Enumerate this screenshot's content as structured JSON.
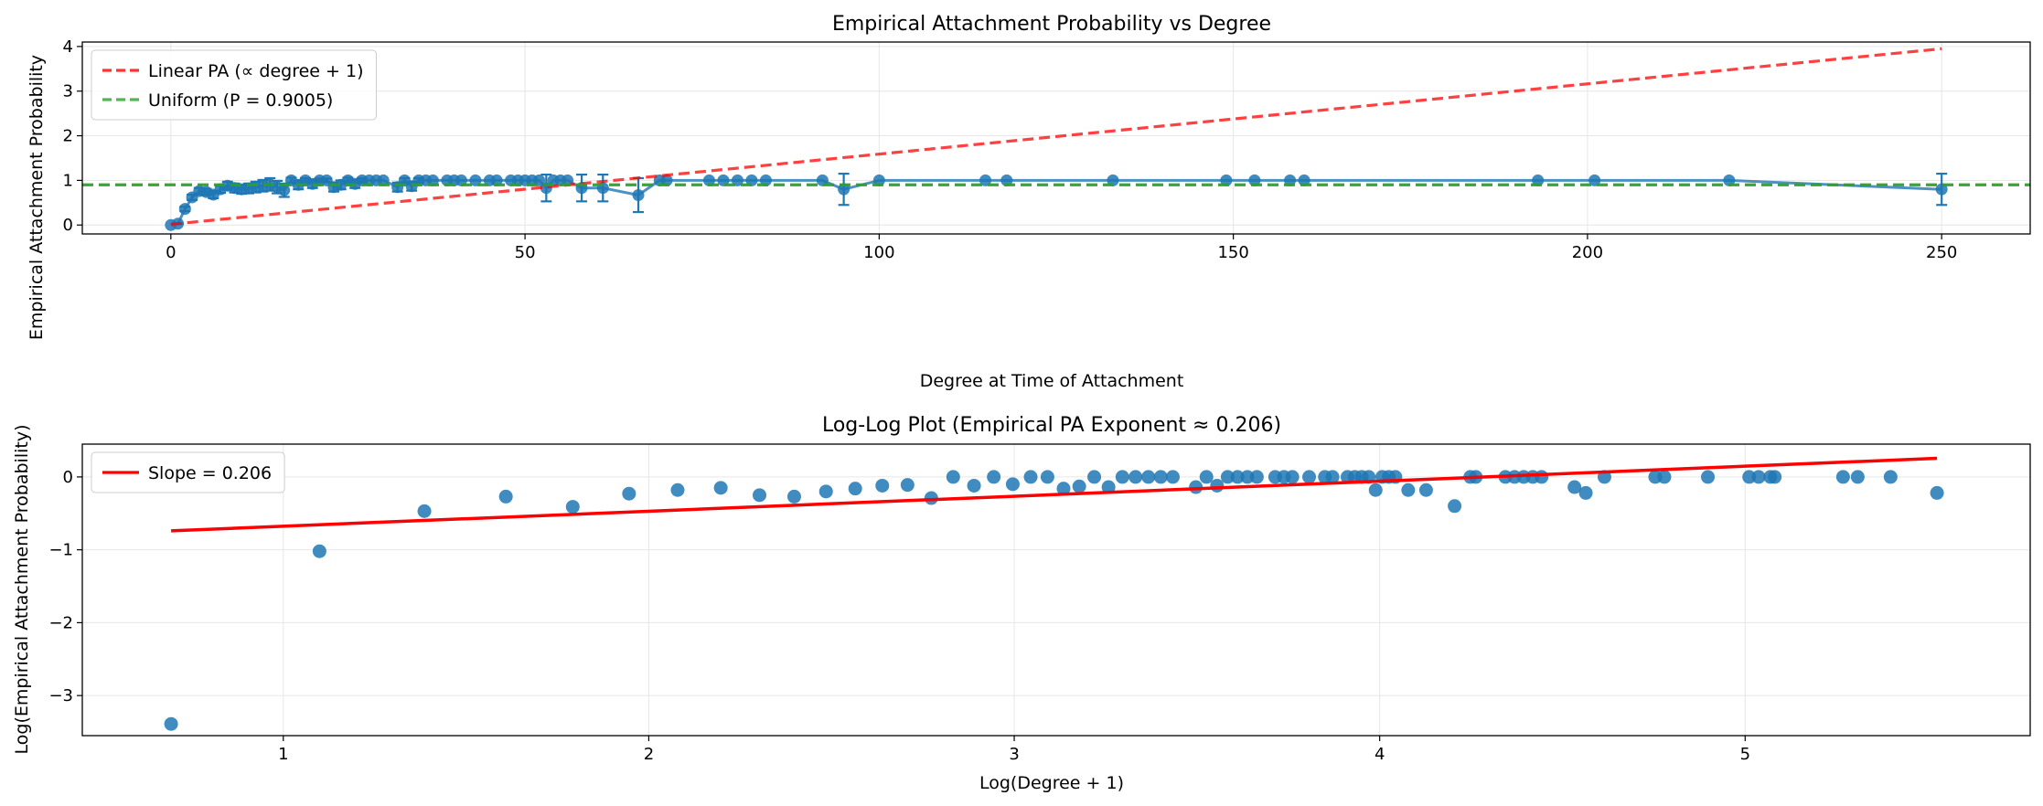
{
  "colors": {
    "data": "#1f77b4",
    "linear_pa": "#ff0000",
    "uniform": "#2ca02c",
    "fit": "#ff0000",
    "grid": "#e6e6e6"
  },
  "chart_data": [
    {
      "type": "line",
      "title": "Empirical Attachment Probability vs Degree",
      "xlabel": "Degree at Time of Attachment",
      "ylabel": "Empirical Attachment Probability",
      "xlim": [
        -12.5,
        262.5
      ],
      "ylim": [
        -0.2,
        4.1
      ],
      "xticks": [
        0,
        50,
        100,
        150,
        200,
        250
      ],
      "yticks": [
        0,
        1,
        2,
        3,
        4
      ],
      "grid": true,
      "legend_placement": "top-left",
      "legend": [
        {
          "label": "Linear PA (∝ degree + 1)",
          "style": "dashed",
          "color": "#ff0000"
        },
        {
          "label": "Uniform (P = 0.9005)",
          "style": "dashed",
          "color": "#2ca02c"
        }
      ],
      "series": [
        {
          "name": "Empirical",
          "kind": "line-with-markers-and-errorbars",
          "points": [
            {
              "x": 0,
              "y": 0.0,
              "err": 0.0
            },
            {
              "x": 1,
              "y": 0.03,
              "err": 0.01
            },
            {
              "x": 2,
              "y": 0.36,
              "err": 0.05
            },
            {
              "x": 3,
              "y": 0.62,
              "err": 0.06
            },
            {
              "x": 4,
              "y": 0.76,
              "err": 0.07
            },
            {
              "x": 5,
              "y": 0.74,
              "err": 0.07
            },
            {
              "x": 6,
              "y": 0.68,
              "err": 0.08
            },
            {
              "x": 7,
              "y": 0.8,
              "err": 0.08
            },
            {
              "x": 8,
              "y": 0.88,
              "err": 0.09
            },
            {
              "x": 9,
              "y": 0.83,
              "err": 0.1
            },
            {
              "x": 10,
              "y": 0.8,
              "err": 0.1
            },
            {
              "x": 11,
              "y": 0.82,
              "err": 0.11
            },
            {
              "x": 12,
              "y": 0.85,
              "err": 0.12
            },
            {
              "x": 13,
              "y": 0.88,
              "err": 0.13
            },
            {
              "x": 14,
              "y": 0.91,
              "err": 0.14
            },
            {
              "x": 15,
              "y": 0.85,
              "err": 0.14
            },
            {
              "x": 16,
              "y": 0.78,
              "err": 0.15
            },
            {
              "x": 17,
              "y": 1.0,
              "err": 0.06
            },
            {
              "x": 18,
              "y": 0.9,
              "err": 0.1
            },
            {
              "x": 19,
              "y": 1.0,
              "err": 0.05
            },
            {
              "x": 20,
              "y": 0.92,
              "err": 0.09
            },
            {
              "x": 21,
              "y": 1.0,
              "err": 0.04
            },
            {
              "x": 22,
              "y": 1.0,
              "err": 0.04
            },
            {
              "x": 23,
              "y": 0.85,
              "err": 0.1
            },
            {
              "x": 24,
              "y": 0.9,
              "err": 0.1
            },
            {
              "x": 25,
              "y": 1.0,
              "err": 0.06
            },
            {
              "x": 26,
              "y": 0.92,
              "err": 0.09
            },
            {
              "x": 27,
              "y": 1.0,
              "err": 0.05
            },
            {
              "x": 28,
              "y": 1.0,
              "err": 0.0
            },
            {
              "x": 29,
              "y": 1.0,
              "err": 0.0
            },
            {
              "x": 30,
              "y": 1.0,
              "err": 0.0
            },
            {
              "x": 32,
              "y": 0.85,
              "err": 0.1
            },
            {
              "x": 33,
              "y": 1.0,
              "err": 0.05
            },
            {
              "x": 34,
              "y": 0.87,
              "err": 0.1
            },
            {
              "x": 35,
              "y": 1.0,
              "err": 0.05
            },
            {
              "x": 36,
              "y": 1.0,
              "err": 0.0
            },
            {
              "x": 37,
              "y": 1.0,
              "err": 0.0
            },
            {
              "x": 39,
              "y": 1.0,
              "err": 0.0
            },
            {
              "x": 40,
              "y": 1.0,
              "err": 0.0
            },
            {
              "x": 41,
              "y": 1.0,
              "err": 0.0
            },
            {
              "x": 43,
              "y": 1.0,
              "err": 0.0
            },
            {
              "x": 45,
              "y": 1.0,
              "err": 0.0
            },
            {
              "x": 46,
              "y": 1.0,
              "err": 0.0
            },
            {
              "x": 48,
              "y": 1.0,
              "err": 0.0
            },
            {
              "x": 49,
              "y": 1.0,
              "err": 0.0
            },
            {
              "x": 50,
              "y": 1.0,
              "err": 0.0
            },
            {
              "x": 51,
              "y": 1.0,
              "err": 0.0
            },
            {
              "x": 52,
              "y": 1.0,
              "err": 0.0
            },
            {
              "x": 53,
              "y": 0.83,
              "err": 0.3
            },
            {
              "x": 54,
              "y": 1.0,
              "err": 0.0
            },
            {
              "x": 55,
              "y": 1.0,
              "err": 0.0
            },
            {
              "x": 56,
              "y": 1.0,
              "err": 0.0
            },
            {
              "x": 58,
              "y": 0.83,
              "err": 0.3
            },
            {
              "x": 61,
              "y": 0.83,
              "err": 0.3
            },
            {
              "x": 66,
              "y": 0.67,
              "err": 0.38
            },
            {
              "x": 69,
              "y": 1.0,
              "err": 0.0
            },
            {
              "x": 70,
              "y": 1.0,
              "err": 0.0
            },
            {
              "x": 76,
              "y": 1.0,
              "err": 0.0
            },
            {
              "x": 78,
              "y": 1.0,
              "err": 0.0
            },
            {
              "x": 80,
              "y": 1.0,
              "err": 0.0
            },
            {
              "x": 82,
              "y": 1.0,
              "err": 0.0
            },
            {
              "x": 84,
              "y": 1.0,
              "err": 0.0
            },
            {
              "x": 92,
              "y": 1.0,
              "err": 0.0
            },
            {
              "x": 95,
              "y": 0.8,
              "err": 0.35
            },
            {
              "x": 100,
              "y": 1.0,
              "err": 0.0
            },
            {
              "x": 115,
              "y": 1.0,
              "err": 0.0
            },
            {
              "x": 118,
              "y": 1.0,
              "err": 0.0
            },
            {
              "x": 133,
              "y": 1.0,
              "err": 0.0
            },
            {
              "x": 149,
              "y": 1.0,
              "err": 0.0
            },
            {
              "x": 153,
              "y": 1.0,
              "err": 0.0
            },
            {
              "x": 158,
              "y": 1.0,
              "err": 0.0
            },
            {
              "x": 160,
              "y": 1.0,
              "err": 0.0
            },
            {
              "x": 193,
              "y": 1.0,
              "err": 0.0
            },
            {
              "x": 201,
              "y": 1.0,
              "err": 0.0
            },
            {
              "x": 220,
              "y": 1.0,
              "err": 0.0
            },
            {
              "x": 250,
              "y": 0.8,
              "err": 0.35
            }
          ]
        },
        {
          "name": "Linear PA (∝ degree + 1)",
          "kind": "dashed-line",
          "x": [
            0,
            250
          ],
          "y": [
            0.0157,
            3.95
          ]
        },
        {
          "name": "Uniform (P = 0.9005)",
          "kind": "dashed-hline",
          "y": 0.9005
        }
      ]
    },
    {
      "type": "scatter",
      "title": "Log-Log Plot (Empirical PA Exponent ≈ 0.206)",
      "xlabel": "Log(Degree + 1)",
      "ylabel": "Log(Empirical Attachment Probability)",
      "xlim": [
        0.45,
        5.78
      ],
      "ylim": [
        -3.55,
        0.45
      ],
      "xticks": [
        1,
        2,
        3,
        4,
        5
      ],
      "yticks": [
        -3,
        -2,
        -1,
        0
      ],
      "grid": true,
      "legend_placement": "top-left",
      "legend": [
        {
          "label": "Slope = 0.206",
          "style": "solid",
          "color": "#ff0000"
        }
      ],
      "series": [
        {
          "name": "Empirical",
          "kind": "markers",
          "x": [
            0.693,
            1.099,
            1.386,
            1.609,
            1.792,
            1.946,
            2.079,
            2.197,
            2.303,
            2.398,
            2.485,
            2.565,
            2.639,
            2.708,
            2.773,
            2.833,
            2.89,
            2.944,
            2.996,
            3.045,
            3.091,
            3.135,
            3.178,
            3.219,
            3.258,
            3.296,
            3.332,
            3.367,
            3.401,
            3.434,
            3.497,
            3.526,
            3.555,
            3.584,
            3.611,
            3.638,
            3.664,
            3.714,
            3.738,
            3.761,
            3.807,
            3.85,
            3.871,
            3.912,
            3.932,
            3.951,
            3.97,
            3.989,
            4.007,
            4.025,
            4.043,
            4.078,
            4.127,
            4.205,
            4.248,
            4.263,
            4.344,
            4.369,
            4.394,
            4.419,
            4.443,
            4.533,
            4.564,
            4.615,
            4.754,
            4.779,
            4.898,
            5.011,
            5.037,
            5.069,
            5.081,
            5.268,
            5.308,
            5.398,
            5.525
          ],
          "y": [
            -3.39,
            -1.02,
            -0.47,
            -0.27,
            -0.41,
            -0.23,
            -0.18,
            -0.15,
            -0.25,
            -0.27,
            -0.2,
            -0.16,
            -0.12,
            -0.11,
            -0.29,
            0.0,
            -0.12,
            0.0,
            -0.1,
            0.0,
            0.0,
            -0.16,
            -0.13,
            0.0,
            -0.14,
            0.0,
            0.0,
            0.0,
            0.0,
            0.0,
            -0.14,
            0.0,
            -0.12,
            0.0,
            0.0,
            0.0,
            0.0,
            0.0,
            0.0,
            0.0,
            0.0,
            0.0,
            0.0,
            0.0,
            0.0,
            0.0,
            0.0,
            -0.18,
            0.0,
            0.0,
            0.0,
            -0.18,
            -0.18,
            -0.4,
            0.0,
            0.0,
            0.0,
            0.0,
            0.0,
            0.0,
            0.0,
            -0.14,
            -0.22,
            0.0,
            0.0,
            0.0,
            0.0,
            0.0,
            0.0,
            0.0,
            0.0,
            0.0,
            0.0,
            0.0,
            -0.22
          ]
        },
        {
          "name": "Slope = 0.206",
          "kind": "line",
          "x": [
            0.693,
            5.525
          ],
          "y": [
            -0.74,
            0.255
          ]
        }
      ]
    }
  ]
}
